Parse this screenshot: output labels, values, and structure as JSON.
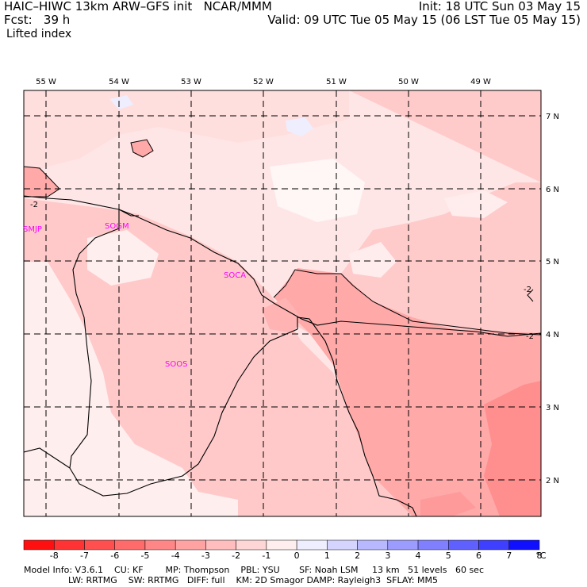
{
  "header": {
    "model": "HAIC–HIWC 13km ARW–GFS init   NCAR/MMM",
    "fcst": "Fcst:   39 h",
    "field": "Lifted index",
    "init": "Init: 18 UTC Sun 03 May 15",
    "valid": "Valid: 09 UTC Tue 05 May 15 (06 LST Tue 05 May 15)"
  },
  "map": {
    "lon_labels": [
      "55 W",
      "54 W",
      "53 W",
      "52 W",
      "51 W",
      "50 W",
      "49 W"
    ],
    "lat_labels": [
      "7 N",
      "6 N",
      "5 N",
      "4 N",
      "3 N",
      "2 N"
    ],
    "stations": [
      "SMJP",
      "SOGM",
      "SOCA",
      "SOOS"
    ],
    "contour_labels": [
      "-2",
      "-2",
      "-2"
    ]
  },
  "colorbar": {
    "ticks": [
      "-8",
      "-7",
      "-6",
      "-5",
      "-4",
      "-3",
      "-2",
      "-1",
      "0",
      "1",
      "2",
      "3",
      "4",
      "5",
      "6",
      "7",
      "8"
    ],
    "unit": "°C",
    "colors": [
      "#ff1010",
      "#ff3333",
      "#ff4f4f",
      "#ff6a6a",
      "#ff8686",
      "#ffa2a2",
      "#ffbdbd",
      "#ffd6d6",
      "#ffeeee",
      "#eeeeff",
      "#d4d4ff",
      "#b8b8ff",
      "#9c9cff",
      "#8080ff",
      "#6060ff",
      "#3f3fff",
      "#1010ff"
    ]
  },
  "info": {
    "line1": "Model Info: V3.6.1    CU: KF        MP: Thompson    PBL: YSU       SF: Noah LSM     13 km   51 levels   60 sec",
    "line2": "                LW: RRTMG    SW: RRTMG   DIFF: full    KM: 2D Smagor DAMP: Rayleigh3  SFLAY: MM5"
  }
}
